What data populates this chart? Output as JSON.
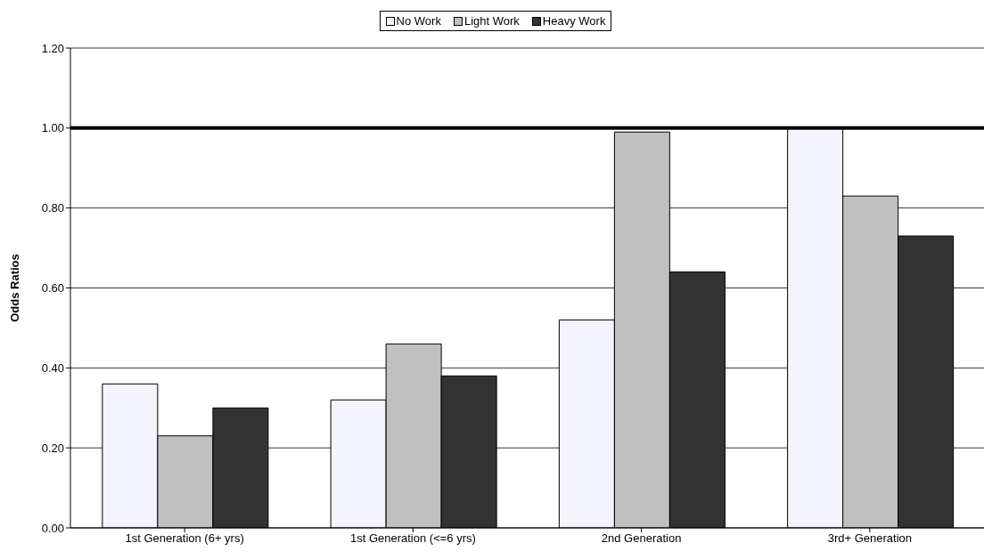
{
  "chart_data": {
    "type": "bar",
    "ylabel": "Odds Ratios",
    "categories": [
      "1st Generation (6+ yrs)",
      "1st Generation (<=6 yrs)",
      "2nd Generation",
      "3rd+ Generation"
    ],
    "series": [
      {
        "name": "No Work",
        "color": "#f4f4ff",
        "values": [
          0.36,
          0.32,
          0.52,
          1.0
        ]
      },
      {
        "name": "Light Work",
        "color": "#c0c0c0",
        "values": [
          0.23,
          0.46,
          0.99,
          0.83
        ]
      },
      {
        "name": "Heavy Work",
        "color": "#333333",
        "values": [
          0.3,
          0.38,
          0.64,
          0.73
        ]
      }
    ],
    "ylim": [
      0,
      1.2
    ],
    "yticks": [
      {
        "value": 0,
        "label": "0.00"
      },
      {
        "value": 0.2,
        "label": "0.20"
      },
      {
        "value": 0.4,
        "label": "0.40"
      },
      {
        "value": 0.6,
        "label": "0.60"
      },
      {
        "value": 0.8,
        "label": "0.80"
      },
      {
        "value": 1,
        "label": "1.00"
      },
      {
        "value": 1.2,
        "label": "1.20"
      }
    ],
    "ref_lines": [
      {
        "axis": "y",
        "value": 1,
        "color": "#000000"
      }
    ],
    "grid": "y",
    "legend": "top"
  }
}
